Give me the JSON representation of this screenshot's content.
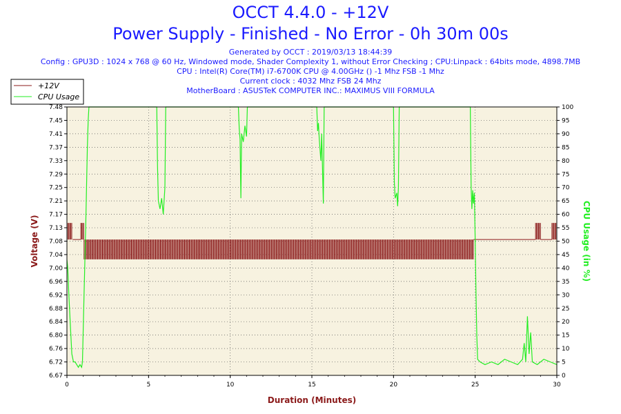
{
  "chart_data": {
    "type": "line",
    "title": "OCCT 4.4.0 - +12V",
    "subtitle": "Power Supply - Finished - No Error - 0h 30m 00s",
    "info_lines": [
      "Generated by OCCT : 2019/03/13 18:44:39",
      "Config : GPU3D : 1024 x 768 @ 60 Hz, Windowed mode, Shader Complexity 1, without Error Checking ; CPU:Linpack : 64bits mode, 4898.7MB",
      "CPU : Intel(R) Core(TM) i7-6700K CPU @ 4.00GHz () -1 Mhz FSB -1 Mhz",
      "Current clock : 4032 Mhz FSB 24 Mhz",
      "MotherBoard : ASUSTeK COMPUTER INC.: MAXIMUS VIII FORMULA"
    ],
    "xlabel": "Duration (Minutes)",
    "ylabel_left": "Voltage (V)",
    "ylabel_right": "CPU Usage (in %)",
    "xlim": [
      0,
      30
    ],
    "ylim_left": [
      6.67,
      7.48
    ],
    "ylim_right": [
      0,
      100
    ],
    "x_ticks": [
      "0",
      "5",
      "10",
      "15",
      "20",
      "25",
      "30"
    ],
    "y_ticks_left": [
      "6.67",
      "6.72",
      "6.76",
      "6.80",
      "6.84",
      "6.88",
      "6.92",
      "6.96",
      "7.00",
      "7.04",
      "7.08",
      "7.13",
      "7.17",
      "7.21",
      "7.25",
      "7.29",
      "7.33",
      "7.37",
      "7.41",
      "7.45",
      "7.48"
    ],
    "y_ticks_right": [
      "0",
      "5",
      "10",
      "15",
      "20",
      "25",
      "30",
      "35",
      "40",
      "45",
      "50",
      "55",
      "60",
      "65",
      "70",
      "75",
      "80",
      "85",
      "90",
      "95",
      "100"
    ],
    "grid": true,
    "legend_position": "top-left",
    "series": [
      {
        "name": "+12V",
        "color": "#8b1a1a",
        "segments": [
          {
            "x": [
              0,
              0.35
            ],
            "levels": [
              7.08,
              7.13
            ]
          },
          {
            "x": [
              0.35,
              0.85
            ],
            "levels": [
              7.08
            ]
          },
          {
            "x": [
              0.85,
              1.05
            ],
            "levels": [
              7.08,
              7.13
            ]
          },
          {
            "x": [
              1.05,
              24.9
            ],
            "levels": [
              7.02,
              7.08
            ]
          },
          {
            "x": [
              24.9,
              28.7
            ],
            "levels": [
              7.08
            ]
          },
          {
            "x": [
              28.7,
              29.0
            ],
            "levels": [
              7.08,
              7.13
            ]
          },
          {
            "x": [
              29.0,
              29.7
            ],
            "levels": [
              7.08
            ]
          },
          {
            "x": [
              29.7,
              30.0
            ],
            "levels": [
              7.08,
              7.13
            ]
          }
        ]
      },
      {
        "name": "CPU Usage",
        "color": "#22ee22",
        "points": [
          [
            0,
            43
          ],
          [
            0.05,
            40
          ],
          [
            0.12,
            30
          ],
          [
            0.2,
            20
          ],
          [
            0.3,
            8
          ],
          [
            0.4,
            5
          ],
          [
            0.5,
            5
          ],
          [
            0.6,
            4
          ],
          [
            0.7,
            3
          ],
          [
            0.8,
            4
          ],
          [
            0.9,
            3
          ],
          [
            0.95,
            5
          ],
          [
            1.05,
            30
          ],
          [
            1.15,
            55
          ],
          [
            1.2,
            70
          ],
          [
            1.25,
            85
          ],
          [
            1.3,
            95
          ],
          [
            1.35,
            100
          ],
          [
            5.5,
            100
          ],
          [
            5.55,
            78
          ],
          [
            5.6,
            65
          ],
          [
            5.7,
            62
          ],
          [
            5.8,
            66
          ],
          [
            5.9,
            60
          ],
          [
            6.0,
            70
          ],
          [
            6.05,
            100
          ],
          [
            10.5,
            100
          ],
          [
            10.55,
            92
          ],
          [
            10.6,
            88
          ],
          [
            10.65,
            66
          ],
          [
            10.7,
            90
          ],
          [
            10.8,
            87
          ],
          [
            10.9,
            93
          ],
          [
            11.0,
            89
          ],
          [
            11.05,
            100
          ],
          [
            15.3,
            100
          ],
          [
            15.35,
            91
          ],
          [
            15.4,
            94
          ],
          [
            15.45,
            88
          ],
          [
            15.55,
            80
          ],
          [
            15.6,
            90
          ],
          [
            15.7,
            64
          ],
          [
            15.75,
            100
          ],
          [
            20.0,
            100
          ],
          [
            20.05,
            72
          ],
          [
            20.1,
            66
          ],
          [
            20.2,
            68
          ],
          [
            20.25,
            63
          ],
          [
            20.3,
            70
          ],
          [
            20.35,
            100
          ],
          [
            24.7,
            100
          ],
          [
            24.75,
            70
          ],
          [
            24.8,
            62
          ],
          [
            24.85,
            69
          ],
          [
            24.9,
            64
          ],
          [
            24.95,
            68
          ],
          [
            25.0,
            50
          ],
          [
            25.05,
            30
          ],
          [
            25.1,
            15
          ],
          [
            25.15,
            6
          ],
          [
            25.3,
            5
          ],
          [
            25.6,
            4
          ],
          [
            26.0,
            5
          ],
          [
            26.4,
            4
          ],
          [
            26.8,
            6
          ],
          [
            27.2,
            5
          ],
          [
            27.6,
            4
          ],
          [
            27.9,
            6
          ],
          [
            28.0,
            12
          ],
          [
            28.1,
            5
          ],
          [
            28.2,
            22
          ],
          [
            28.3,
            8
          ],
          [
            28.4,
            16
          ],
          [
            28.5,
            5
          ],
          [
            28.8,
            4
          ],
          [
            29.2,
            6
          ],
          [
            29.6,
            5
          ],
          [
            30.0,
            4
          ]
        ]
      }
    ]
  }
}
